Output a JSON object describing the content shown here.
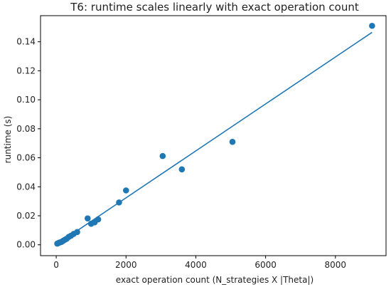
{
  "chart_data": {
    "type": "scatter",
    "title": "T6: runtime scales linearly with exact operation count",
    "xlabel": "exact operation count (N_strategies X |Theta|)",
    "ylabel": "runtime (s)",
    "xlim": [
      -450,
      9450
    ],
    "ylim": [
      -0.0075,
      0.158
    ],
    "x_ticks": [
      0,
      2000,
      4000,
      6000,
      8000
    ],
    "x_tick_labels": [
      "0",
      "2000",
      "4000",
      "6000",
      "8000"
    ],
    "y_ticks": [
      0.0,
      0.02,
      0.04,
      0.06,
      0.08,
      0.1,
      0.12,
      0.14
    ],
    "y_tick_labels": [
      "0.00",
      "0.02",
      "0.04",
      "0.06",
      "0.08",
      "0.10",
      "0.12",
      "0.14"
    ],
    "grid": false,
    "series": [
      {
        "kind": "points",
        "color": "#1f77b4",
        "points": [
          {
            "x": 30,
            "y": 0.0008
          },
          {
            "x": 60,
            "y": 0.0012
          },
          {
            "x": 100,
            "y": 0.0016
          },
          {
            "x": 150,
            "y": 0.002
          },
          {
            "x": 200,
            "y": 0.0028
          },
          {
            "x": 250,
            "y": 0.0035
          },
          {
            "x": 300,
            "y": 0.0042
          },
          {
            "x": 360,
            "y": 0.0055
          },
          {
            "x": 420,
            "y": 0.0062
          },
          {
            "x": 500,
            "y": 0.0075
          },
          {
            "x": 600,
            "y": 0.0088
          },
          {
            "x": 900,
            "y": 0.0182
          },
          {
            "x": 1000,
            "y": 0.0145
          },
          {
            "x": 1100,
            "y": 0.0155
          },
          {
            "x": 1200,
            "y": 0.0175
          },
          {
            "x": 1800,
            "y": 0.0292
          },
          {
            "x": 2000,
            "y": 0.0375
          },
          {
            "x": 3050,
            "y": 0.0612
          },
          {
            "x": 3600,
            "y": 0.052
          },
          {
            "x": 5050,
            "y": 0.071
          },
          {
            "x": 9050,
            "y": 0.151
          }
        ]
      },
      {
        "kind": "fit-line",
        "color": "#1f77b4",
        "x": [
          0,
          9050
        ],
        "y": [
          0.0,
          0.1465
        ]
      }
    ]
  }
}
